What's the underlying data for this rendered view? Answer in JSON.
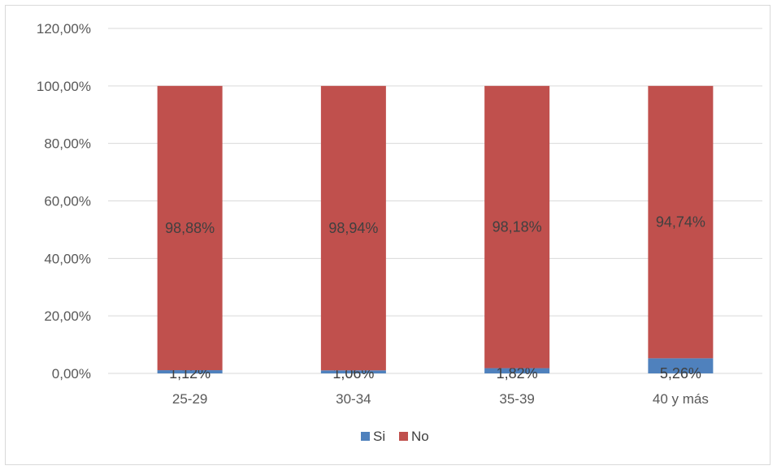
{
  "chart_data": {
    "type": "bar",
    "stacked": true,
    "categories": [
      "25-29",
      "30-34",
      "35-39",
      "40 y más"
    ],
    "series": [
      {
        "name": "Si",
        "values": [
          1.12,
          1.06,
          1.82,
          5.26
        ],
        "labels": [
          "1,12%",
          "1,06%",
          "1,82%",
          "5,26%"
        ],
        "color": "#4f81bd"
      },
      {
        "name": "No",
        "values": [
          98.88,
          98.94,
          98.18,
          94.74
        ],
        "labels": [
          "98,88%",
          "98,94%",
          "98,18%",
          "94,74%"
        ],
        "color": "#c0504d"
      }
    ],
    "yticks": [
      "0,00%",
      "20,00%",
      "40,00%",
      "60,00%",
      "80,00%",
      "100,00%",
      "120,00%"
    ],
    "ylim": [
      0,
      120
    ],
    "grid": true,
    "legend_position": "bottom",
    "title": "",
    "xlabel": "",
    "ylabel": ""
  }
}
